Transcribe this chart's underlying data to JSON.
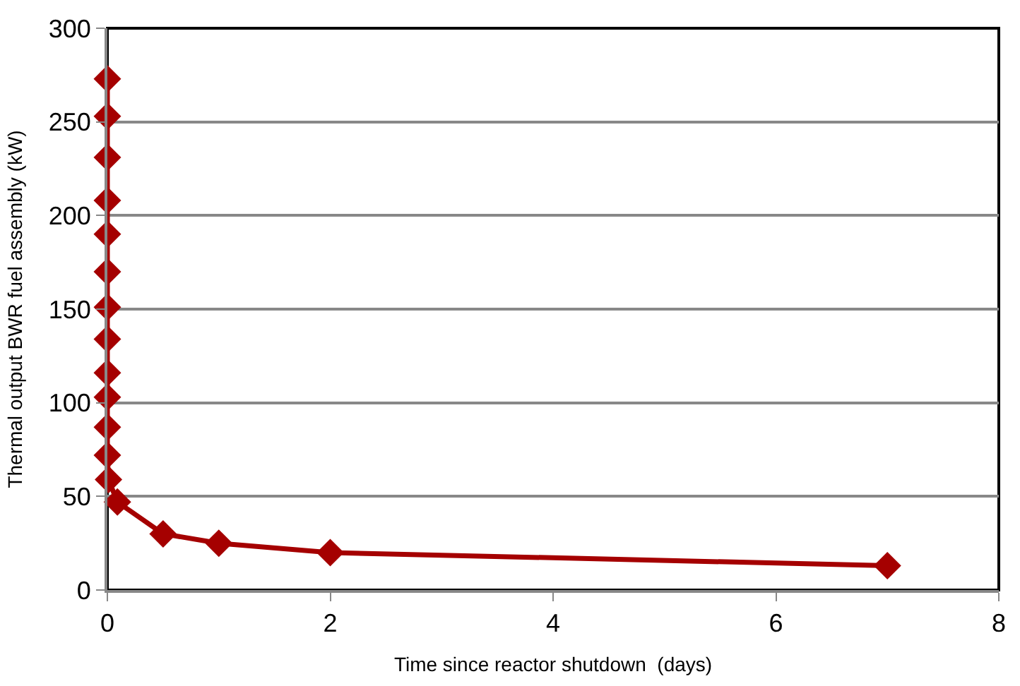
{
  "chart_data": {
    "type": "line",
    "xlabel": "Time since reactor shutdown  (days)",
    "ylabel": "Thermal output BWR fuel assembly (kW)",
    "x": [
      0,
      0,
      0,
      0,
      0,
      0,
      0,
      0,
      0,
      0,
      0,
      0,
      0.01,
      0.09,
      0.5,
      1,
      2,
      7
    ],
    "series": [
      {
        "color": "#a50000",
        "values": [
          273,
          253,
          231,
          208,
          190,
          170,
          151,
          134,
          116,
          103,
          87,
          72,
          59,
          47,
          30,
          25,
          20,
          13
        ]
      }
    ],
    "xlim": [
      0,
      8
    ],
    "xticks": [
      0,
      2,
      4,
      6,
      8
    ],
    "ylim": [
      0,
      300
    ],
    "yticks": [
      0,
      50,
      100,
      150,
      200,
      250,
      300
    ],
    "grid": "y",
    "marker": "diamond",
    "line_style": "solid",
    "legend": false
  }
}
